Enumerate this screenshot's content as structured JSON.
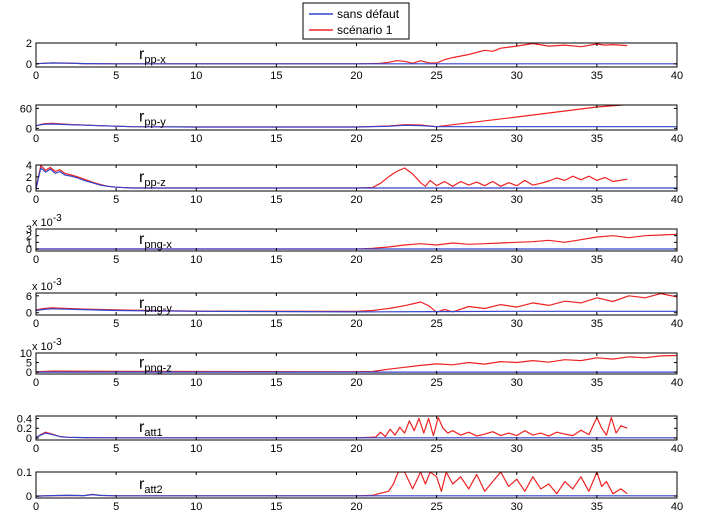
{
  "chart_data": {
    "type": "line",
    "legend": {
      "placement": "top-center",
      "entries": [
        {
          "name": "sans défaut",
          "color": "#3344cc"
        },
        {
          "name": "scénario 1",
          "color": "#ee2222"
        }
      ]
    },
    "xlim": [
      0,
      40
    ],
    "xticks": [
      "0",
      "5",
      "10",
      "15",
      "20",
      "25",
      "30",
      "35",
      "40"
    ],
    "grid": false,
    "subplots": [
      {
        "label_main": "r",
        "label_sub": "pp-x",
        "exponent": "",
        "ylim": [
          -0.3,
          2
        ],
        "yticks": [
          "0",
          "2"
        ],
        "series": [
          {
            "name": "sans défaut",
            "x": [
              0,
              0.5,
              1,
              2,
              3,
              5,
              40
            ],
            "y": [
              0.02,
              0.05,
              0.08,
              0.06,
              0.03,
              0.01,
              0.01
            ]
          },
          {
            "name": "scénario 1",
            "x": [
              0,
              0.5,
              1,
              2,
              3,
              5,
              10,
              20,
              21.5,
              22,
              22.5,
              23,
              23.5,
              24,
              24.5,
              25,
              25.5,
              26,
              27,
              28,
              28.5,
              29,
              30,
              31,
              32,
              33,
              34,
              35,
              35.5,
              36,
              36.9
            ],
            "y": [
              0.02,
              0.05,
              0.1,
              0.07,
              0.03,
              0.01,
              0.01,
              0.01,
              0.05,
              0.15,
              0.3,
              0.25,
              0.05,
              0.3,
              0.1,
              0.08,
              0.4,
              0.6,
              0.9,
              1.3,
              1.2,
              1.5,
              1.7,
              1.95,
              1.7,
              1.8,
              1.65,
              1.9,
              1.8,
              1.85,
              1.75
            ]
          }
        ]
      },
      {
        "label_main": "r",
        "label_sub": "pp-y",
        "exponent": "",
        "ylim": [
          -5,
          70
        ],
        "yticks": [
          "0",
          "60"
        ],
        "series": [
          {
            "name": "sans défaut",
            "x": [
              0,
              0.5,
              1,
              2,
              4,
              6,
              10,
              20,
              22,
              23,
              24,
              25,
              30,
              40
            ],
            "y": [
              8,
              12,
              13,
              11,
              8,
              5,
              4,
              4,
              6,
              9,
              8,
              5,
              5,
              5
            ]
          },
          {
            "name": "scénario 1",
            "x": [
              0,
              0.5,
              1,
              2,
              4,
              6,
              10,
              20,
              22,
              23,
              24,
              25,
              30,
              35,
              36.9
            ],
            "y": [
              8,
              14,
              15,
              12,
              8,
              5,
              4,
              4,
              7,
              11,
              10,
              5,
              34,
              64,
              71
            ]
          }
        ]
      },
      {
        "label_main": "r",
        "label_sub": "pp-z",
        "exponent": "",
        "ylim": [
          -0.4,
          4
        ],
        "yticks": [
          "0",
          "2",
          "4"
        ],
        "series": [
          {
            "name": "sans défaut",
            "x": [
              0,
              0.3,
              0.6,
              0.9,
              1.2,
              1.5,
              1.8,
              2.2,
              2.6,
              3,
              3.5,
              4,
              4.5,
              5,
              6,
              10,
              20,
              30,
              40
            ],
            "y": [
              0,
              3.5,
              2.8,
              3.3,
              2.6,
              2.9,
              2.3,
              2.1,
              1.8,
              1.4,
              1,
              0.6,
              0.4,
              0.25,
              0.1,
              0.1,
              0.1,
              0.1,
              0.1
            ]
          },
          {
            "name": "scénario 1",
            "x": [
              0,
              0.3,
              0.6,
              0.9,
              1.2,
              1.5,
              1.8,
              2.2,
              2.6,
              3,
              3.5,
              4,
              4.5,
              5,
              6,
              10,
              20,
              21,
              21.5,
              22,
              22.5,
              23,
              23.5,
              24,
              24.3,
              24.6,
              25,
              25.5,
              26,
              26.5,
              27,
              27.5,
              28,
              28.5,
              29,
              29.5,
              30,
              30.5,
              31,
              31.5,
              32,
              32.5,
              33,
              33.5,
              34,
              34.5,
              35,
              35.5,
              36,
              36.9
            ],
            "y": [
              0,
              3.9,
              3.1,
              3.6,
              2.9,
              3.2,
              2.6,
              2.3,
              2,
              1.6,
              1.1,
              0.7,
              0.4,
              0.25,
              0.1,
              0.1,
              0.1,
              0.2,
              0.9,
              2,
              2.9,
              3.5,
              2.5,
              1,
              0.4,
              1.4,
              0.5,
              1.2,
              0.4,
              1.2,
              0.6,
              1.1,
              0.5,
              1.2,
              0.4,
              1,
              0.5,
              1.4,
              0.6,
              0.9,
              1.3,
              1.8,
              1.4,
              2.1,
              1.5,
              2.1,
              1.4,
              1.9,
              1.2,
              1.6
            ]
          }
        ]
      },
      {
        "label_main": "r",
        "label_sub": "png-x",
        "exponent": "-3",
        "ylim": [
          -0.3,
          3
        ],
        "yticks": [
          "0",
          "1",
          "2",
          "3"
        ],
        "series": [
          {
            "name": "sans défaut",
            "x": [
              0,
              5,
              10,
              20,
              40
            ],
            "y": [
              0,
              0,
              0,
              0,
              0
            ]
          },
          {
            "name": "scénario 1",
            "x": [
              0,
              5,
              10,
              20,
              21,
              22,
              23,
              24,
              25,
              26,
              27,
              28,
              29,
              30,
              31,
              32,
              33,
              34,
              35,
              36,
              37,
              38,
              39,
              40
            ],
            "y": [
              0,
              0,
              0,
              0,
              0.1,
              0.3,
              0.6,
              0.8,
              0.6,
              0.9,
              0.7,
              0.8,
              0.9,
              1.0,
              1.1,
              1.3,
              1.0,
              1.4,
              1.8,
              2.0,
              1.7,
              2.0,
              2.1,
              2.2
            ]
          }
        ]
      },
      {
        "label_main": "r",
        "label_sub": "png-y",
        "exponent": "-3",
        "ylim": [
          -0.8,
          7
        ],
        "yticks": [
          "0",
          "6"
        ],
        "series": [
          {
            "name": "sans défaut",
            "x": [
              0,
              0.5,
              1,
              3,
              5,
              10,
              20,
              25,
              30,
              40
            ],
            "y": [
              0.8,
              1.2,
              1.4,
              1.1,
              0.8,
              0.5,
              0.3,
              0.4,
              0.5,
              0.5
            ]
          },
          {
            "name": "scénario 1",
            "x": [
              0,
              0.5,
              1,
              3,
              5,
              10,
              20,
              21,
              22,
              23,
              24,
              24.5,
              25,
              25.5,
              26,
              27,
              28,
              29,
              30,
              31,
              32,
              33,
              34,
              35,
              36,
              37,
              38,
              39,
              40
            ],
            "y": [
              1,
              1.5,
              1.7,
              1.3,
              1,
              0.6,
              0.5,
              0.8,
              1.5,
              2.5,
              3.8,
              2.5,
              0.2,
              1.2,
              0.3,
              2.2,
              1.5,
              2.9,
              2,
              3.5,
              2.6,
              4.1,
              3.5,
              5.3,
              4,
              6,
              5.3,
              6.8,
              5.6
            ]
          }
        ]
      },
      {
        "label_main": "r",
        "label_sub": "png-z",
        "exponent": "-3",
        "ylim": [
          -1,
          10
        ],
        "yticks": [
          "0",
          "5",
          "10"
        ],
        "series": [
          {
            "name": "sans défaut",
            "x": [
              0,
              5,
              10,
              20,
              40
            ],
            "y": [
              0,
              0,
              0,
              0,
              0
            ]
          },
          {
            "name": "scénario 1",
            "x": [
              0,
              1,
              5,
              10,
              20,
              21,
              22,
              23,
              24,
              25,
              26,
              27,
              28,
              29,
              30,
              31,
              32,
              33,
              34,
              35,
              36,
              37,
              38,
              39,
              40
            ],
            "y": [
              0.2,
              0.5,
              0.4,
              0.3,
              0.2,
              0.3,
              1.5,
              2.5,
              3.5,
              4.3,
              3.8,
              5.0,
              4.2,
              5.5,
              5.0,
              6.0,
              5.2,
              6.5,
              6.0,
              7.5,
              6.8,
              8.0,
              7.5,
              8.5,
              8.7
            ]
          }
        ]
      },
      {
        "label_main": "r",
        "label_sub": "att1",
        "exponent": "",
        "ylim": [
          -0.04,
          0.45
        ],
        "yticks": [
          "0",
          "0.2",
          "0.4"
        ],
        "series": [
          {
            "name": "sans défaut",
            "x": [
              0,
              0.3,
              0.6,
              1,
              1.5,
              2,
              3,
              5,
              40
            ],
            "y": [
              0.01,
              0.06,
              0.1,
              0.07,
              0.03,
              0.015,
              0.01,
              0.005,
              0.005
            ]
          },
          {
            "name": "scénario 1",
            "x": [
              0,
              0.3,
              0.6,
              1,
              1.5,
              2,
              3,
              5,
              10,
              20,
              21.2,
              21.5,
              21.8,
              22.1,
              22.4,
              22.7,
              23,
              23.3,
              23.6,
              23.9,
              24.2,
              24.5,
              24.8,
              25.1,
              25.4,
              25.7,
              26,
              26.5,
              27,
              27.5,
              28,
              28.5,
              29,
              29.5,
              30,
              30.5,
              31,
              31.5,
              32,
              32.5,
              33,
              33.5,
              34,
              34.5,
              35,
              35.3,
              35.6,
              35.9,
              36.2,
              36.5,
              36.9
            ],
            "y": [
              0.01,
              0.07,
              0.12,
              0.08,
              0.03,
              0.015,
              0.01,
              0.005,
              0.005,
              0.005,
              0.02,
              0.12,
              0.03,
              0.18,
              0.06,
              0.22,
              0.1,
              0.35,
              0.15,
              0.4,
              0.1,
              0.4,
              0.05,
              0.42,
              0.2,
              0.1,
              0.15,
              0.06,
              0.12,
              0.04,
              0.08,
              0.13,
              0.05,
              0.1,
              0.05,
              0.15,
              0.06,
              0.1,
              0.04,
              0.12,
              0.08,
              0.05,
              0.16,
              0.07,
              0.42,
              0.2,
              0.06,
              0.42,
              0.1,
              0.25,
              0.2
            ]
          }
        ]
      },
      {
        "label_main": "r",
        "label_sub": "att2",
        "exponent": "",
        "ylim": [
          -0.008,
          0.1
        ],
        "yticks": [
          "0",
          "0.1"
        ],
        "series": [
          {
            "name": "sans défaut",
            "x": [
              0,
              1,
              2,
              3,
              3.5,
              4,
              5,
              40
            ],
            "y": [
              0,
              0.002,
              0.003,
              0.002,
              0.006,
              0.003,
              0.001,
              0.001
            ]
          },
          {
            "name": "scénario 1",
            "x": [
              0,
              1,
              2,
              3,
              3.5,
              4,
              5,
              10,
              20,
              21,
              21.5,
              22,
              22.3,
              22.6,
              23,
              23.5,
              24,
              24.3,
              24.6,
              25,
              25.3,
              25.6,
              26,
              26.5,
              27,
              27.5,
              28,
              28.5,
              29,
              29.5,
              30,
              30.5,
              31,
              31.5,
              32,
              32.5,
              33,
              33.5,
              34,
              34.5,
              35,
              35.3,
              35.6,
              36,
              36.5,
              36.9
            ],
            "y": [
              0,
              0.002,
              0.003,
              0.002,
              0.007,
              0.003,
              0.001,
              0.001,
              0.001,
              0.003,
              0.012,
              0.02,
              0.05,
              0.1,
              0.1,
              0.03,
              0.1,
              0.05,
              0.1,
              0.08,
              0.02,
              0.1,
              0.05,
              0.08,
              0.03,
              0.09,
              0.02,
              0.06,
              0.1,
              0.04,
              0.07,
              0.02,
              0.08,
              0.03,
              0.05,
              0.01,
              0.06,
              0.03,
              0.08,
              0.02,
              0.1,
              0.04,
              0.06,
              0.01,
              0.03,
              0.01
            ]
          }
        ]
      }
    ]
  }
}
